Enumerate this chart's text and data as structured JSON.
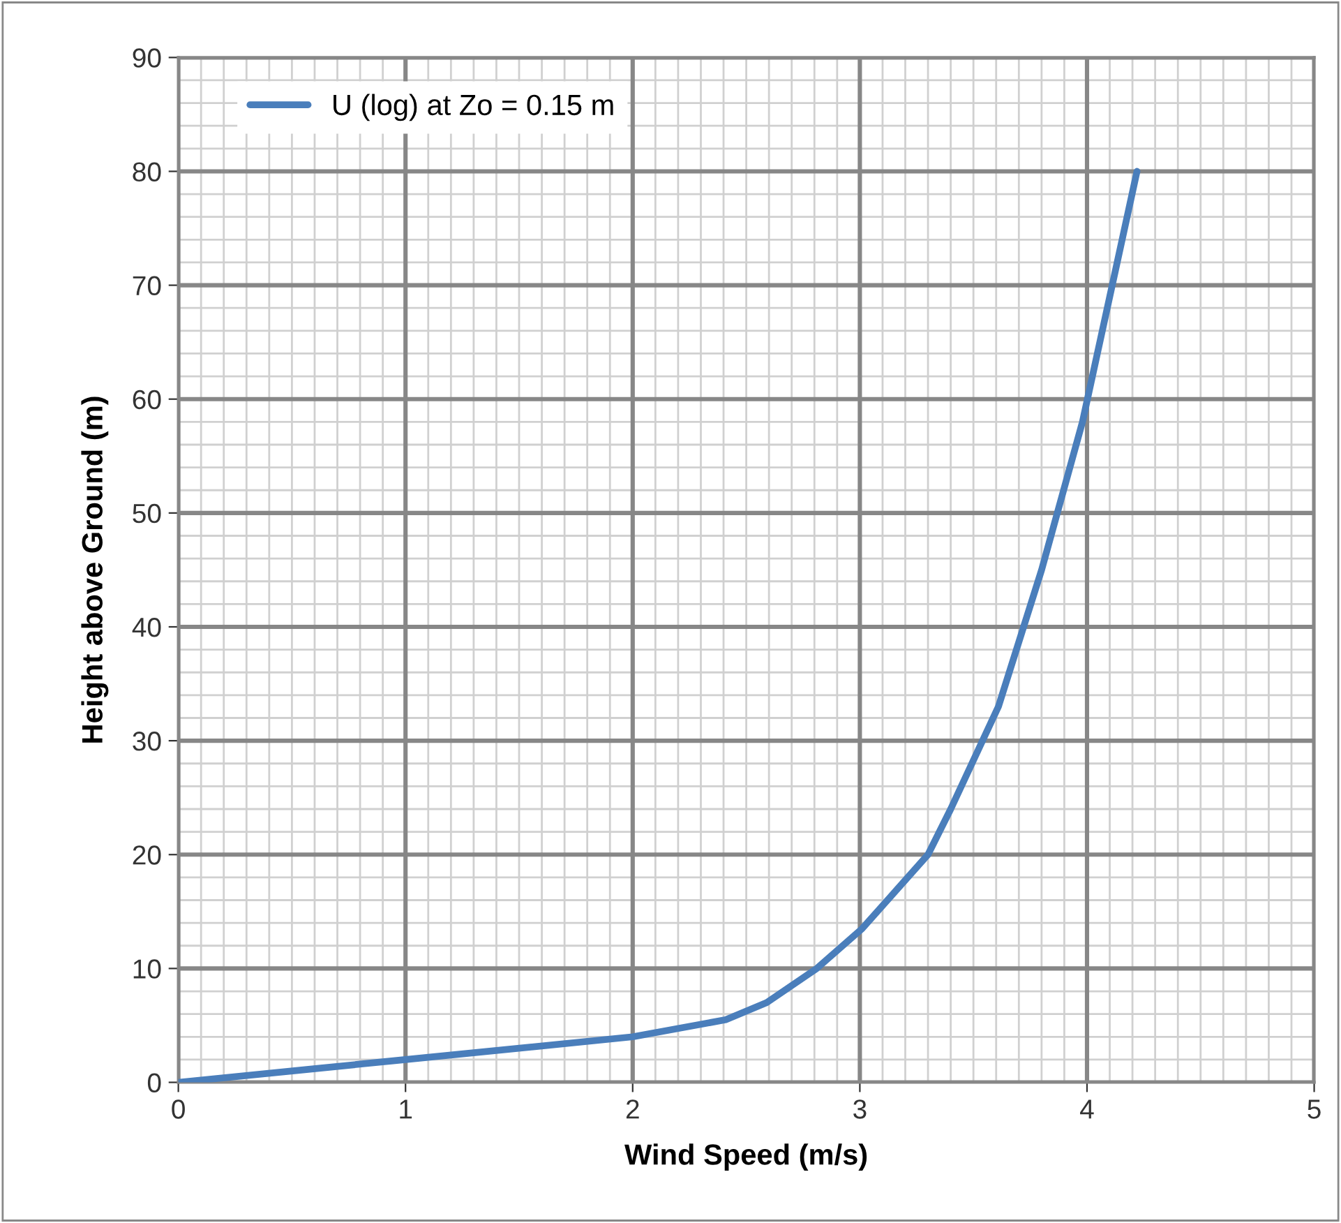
{
  "chart_data": {
    "type": "line",
    "xlabel": "Wind Speed (m/s)",
    "ylabel": "Height above Ground (m)",
    "series": [
      {
        "name": "U (log) at Zo = 0.15 m",
        "color": "#4a7ebb",
        "x": [
          0,
          1,
          2,
          2.41,
          2.59,
          2.81,
          3.01,
          3.3,
          3.4,
          3.61,
          3.8,
          3.98,
          4.1,
          4.22
        ],
        "values": [
          0,
          2,
          4,
          5.5,
          7,
          10,
          13.5,
          20,
          24,
          33,
          45,
          58,
          69,
          80
        ]
      }
    ],
    "xlim": [
      0,
      5
    ],
    "xticks": [
      0,
      1,
      2,
      3,
      4,
      5
    ],
    "ylim": [
      0,
      90
    ],
    "yticks": [
      0,
      10,
      20,
      30,
      40,
      50,
      60,
      70,
      80,
      90
    ],
    "grid": true,
    "legend": "top left",
    "marker": "none",
    "line_style": "solid"
  }
}
